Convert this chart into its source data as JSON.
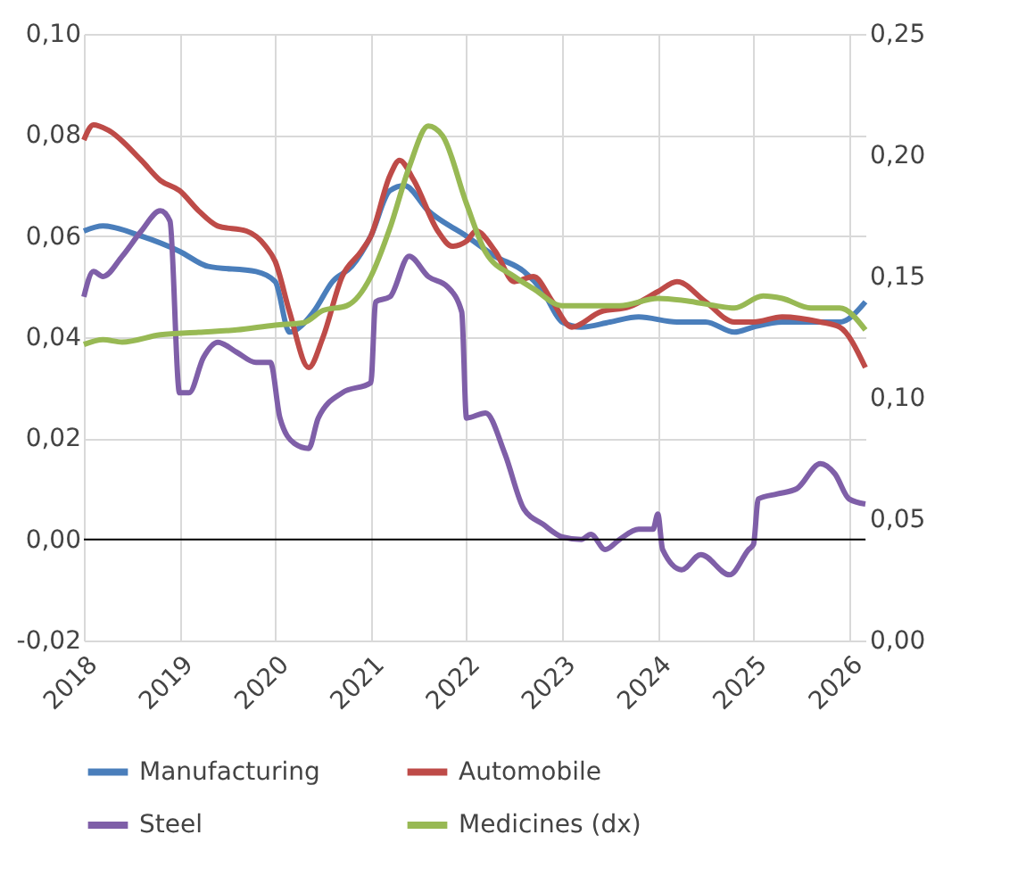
{
  "chart_data": {
    "type": "line",
    "xlim": [
      2018,
      2026.17
    ],
    "xticks": [
      2018,
      2019,
      2020,
      2021,
      2022,
      2023,
      2024,
      2025,
      2026
    ],
    "ylim": [
      -0.02,
      0.1
    ],
    "yticks": [
      {
        "value": -0.02,
        "label": "-0,02"
      },
      {
        "value": 0,
        "label": "0,00"
      },
      {
        "value": 0.02,
        "label": "0,02"
      },
      {
        "value": 0.04,
        "label": "0,04"
      },
      {
        "value": 0.06,
        "label": "0,06"
      },
      {
        "value": 0.08,
        "label": "0,08"
      },
      {
        "value": 0.1,
        "label": "0,10"
      }
    ],
    "y2lim": [
      0,
      0.25
    ],
    "y2ticks": [
      {
        "value": 0,
        "label": "0,00"
      },
      {
        "value": 0.05,
        "label": "0,05"
      },
      {
        "value": 0.1,
        "label": "0,10"
      },
      {
        "value": 0.15,
        "label": "0,15"
      },
      {
        "value": 0.2,
        "label": "0,20"
      },
      {
        "value": 0.25,
        "label": "0,25"
      }
    ],
    "grid": true,
    "legend": "bottom",
    "line_style": "solid",
    "marker": "none",
    "ref_lines": [
      {
        "axis": "y",
        "value": 0,
        "color": "#000000"
      }
    ],
    "series": [
      {
        "name": "Manufacturing",
        "color": "#4a7ebb",
        "x": [
          2018.0,
          2018.2,
          2018.6,
          2019.0,
          2019.3,
          2019.8,
          2020.0,
          2020.15,
          2020.4,
          2020.6,
          2020.8,
          2021.0,
          2021.2,
          2021.35,
          2021.6,
          2022.0,
          2022.3,
          2022.6,
          2022.8,
          2023.0,
          2023.2,
          2023.5,
          2023.8,
          2024.2,
          2024.5,
          2024.8,
          2025.0,
          2025.3,
          2025.6,
          2025.9,
          2026.17
        ],
        "values": [
          0.061,
          0.062,
          0.06,
          0.057,
          0.054,
          0.053,
          0.051,
          0.041,
          0.045,
          0.051,
          0.054,
          0.06,
          0.069,
          0.07,
          0.065,
          0.06,
          0.056,
          0.053,
          0.049,
          0.043,
          0.042,
          0.043,
          0.044,
          0.043,
          0.043,
          0.041,
          0.042,
          0.043,
          0.043,
          0.043,
          0.047
        ]
      },
      {
        "name": "Automobile",
        "color": "#be4b48",
        "x": [
          2018.0,
          2018.1,
          2018.25,
          2018.6,
          2018.8,
          2019.0,
          2019.2,
          2019.4,
          2019.7,
          2019.9,
          2020.0,
          2020.15,
          2020.35,
          2020.5,
          2020.7,
          2020.9,
          2021.0,
          2021.2,
          2021.3,
          2021.45,
          2021.7,
          2021.85,
          2022.0,
          2022.1,
          2022.3,
          2022.5,
          2022.7,
          2022.9,
          2023.1,
          2023.4,
          2023.7,
          2024.0,
          2024.2,
          2024.5,
          2024.8,
          2025.0,
          2025.3,
          2025.7,
          2025.9,
          2026.17
        ],
        "values": [
          0.079,
          0.082,
          0.081,
          0.075,
          0.071,
          0.069,
          0.065,
          0.062,
          0.061,
          0.058,
          0.055,
          0.045,
          0.034,
          0.04,
          0.052,
          0.057,
          0.06,
          0.072,
          0.075,
          0.071,
          0.061,
          0.058,
          0.059,
          0.061,
          0.057,
          0.051,
          0.052,
          0.047,
          0.042,
          0.045,
          0.046,
          0.049,
          0.051,
          0.047,
          0.043,
          0.043,
          0.044,
          0.043,
          0.042,
          0.034
        ]
      },
      {
        "name": "Steel",
        "color": "#7f5fa8",
        "x": [
          2018.0,
          2018.1,
          2018.2,
          2018.4,
          2018.6,
          2018.8,
          2018.9,
          2019.0,
          2019.1,
          2019.25,
          2019.4,
          2019.6,
          2019.8,
          2019.95,
          2020.05,
          2020.2,
          2020.35,
          2020.45,
          2020.7,
          2021.0,
          2021.05,
          2021.2,
          2021.4,
          2021.6,
          2021.8,
          2021.95,
          2022.0,
          2022.2,
          2022.4,
          2022.6,
          2022.8,
          2023.0,
          2023.2,
          2023.3,
          2023.45,
          2023.6,
          2023.8,
          2023.95,
          2024.0,
          2024.05,
          2024.25,
          2024.45,
          2024.75,
          2024.95,
          2025.0,
          2025.05,
          2025.25,
          2025.45,
          2025.7,
          2025.85,
          2026.0,
          2026.17
        ],
        "values": [
          0.048,
          0.053,
          0.052,
          0.056,
          0.061,
          0.065,
          0.063,
          0.029,
          0.029,
          0.036,
          0.039,
          0.037,
          0.035,
          0.035,
          0.024,
          0.019,
          0.018,
          0.024,
          0.029,
          0.031,
          0.047,
          0.048,
          0.056,
          0.052,
          0.05,
          0.045,
          0.024,
          0.025,
          0.017,
          0.006,
          0.003,
          0.0005,
          0.0,
          0.001,
          -0.002,
          0.0,
          0.002,
          0.002,
          0.005,
          -0.002,
          -0.006,
          -0.003,
          -0.007,
          -0.002,
          -0.001,
          0.008,
          0.009,
          0.01,
          0.015,
          0.013,
          0.008,
          0.007
        ]
      },
      {
        "name": "Medicines (dx)",
        "color": "#98b954",
        "axis": "y2",
        "x": [
          2018.0,
          2018.2,
          2018.4,
          2018.8,
          2019.2,
          2019.6,
          2020.0,
          2020.3,
          2020.5,
          2020.75,
          2021.0,
          2021.2,
          2021.4,
          2021.6,
          2021.75,
          2022.0,
          2022.2,
          2022.5,
          2022.7,
          2023.0,
          2023.3,
          2023.6,
          2024.0,
          2024.3,
          2024.6,
          2024.8,
          2025.1,
          2025.3,
          2025.6,
          2025.9,
          2026.17
        ],
        "values": [
          0.122,
          0.124,
          0.123,
          0.126,
          0.127,
          0.128,
          0.13,
          0.131,
          0.136,
          0.138,
          0.15,
          0.17,
          0.195,
          0.212,
          0.208,
          0.18,
          0.16,
          0.15,
          0.145,
          0.138,
          0.138,
          0.138,
          0.141,
          0.14,
          0.138,
          0.137,
          0.142,
          0.141,
          0.137,
          0.137,
          0.128
        ]
      }
    ]
  }
}
